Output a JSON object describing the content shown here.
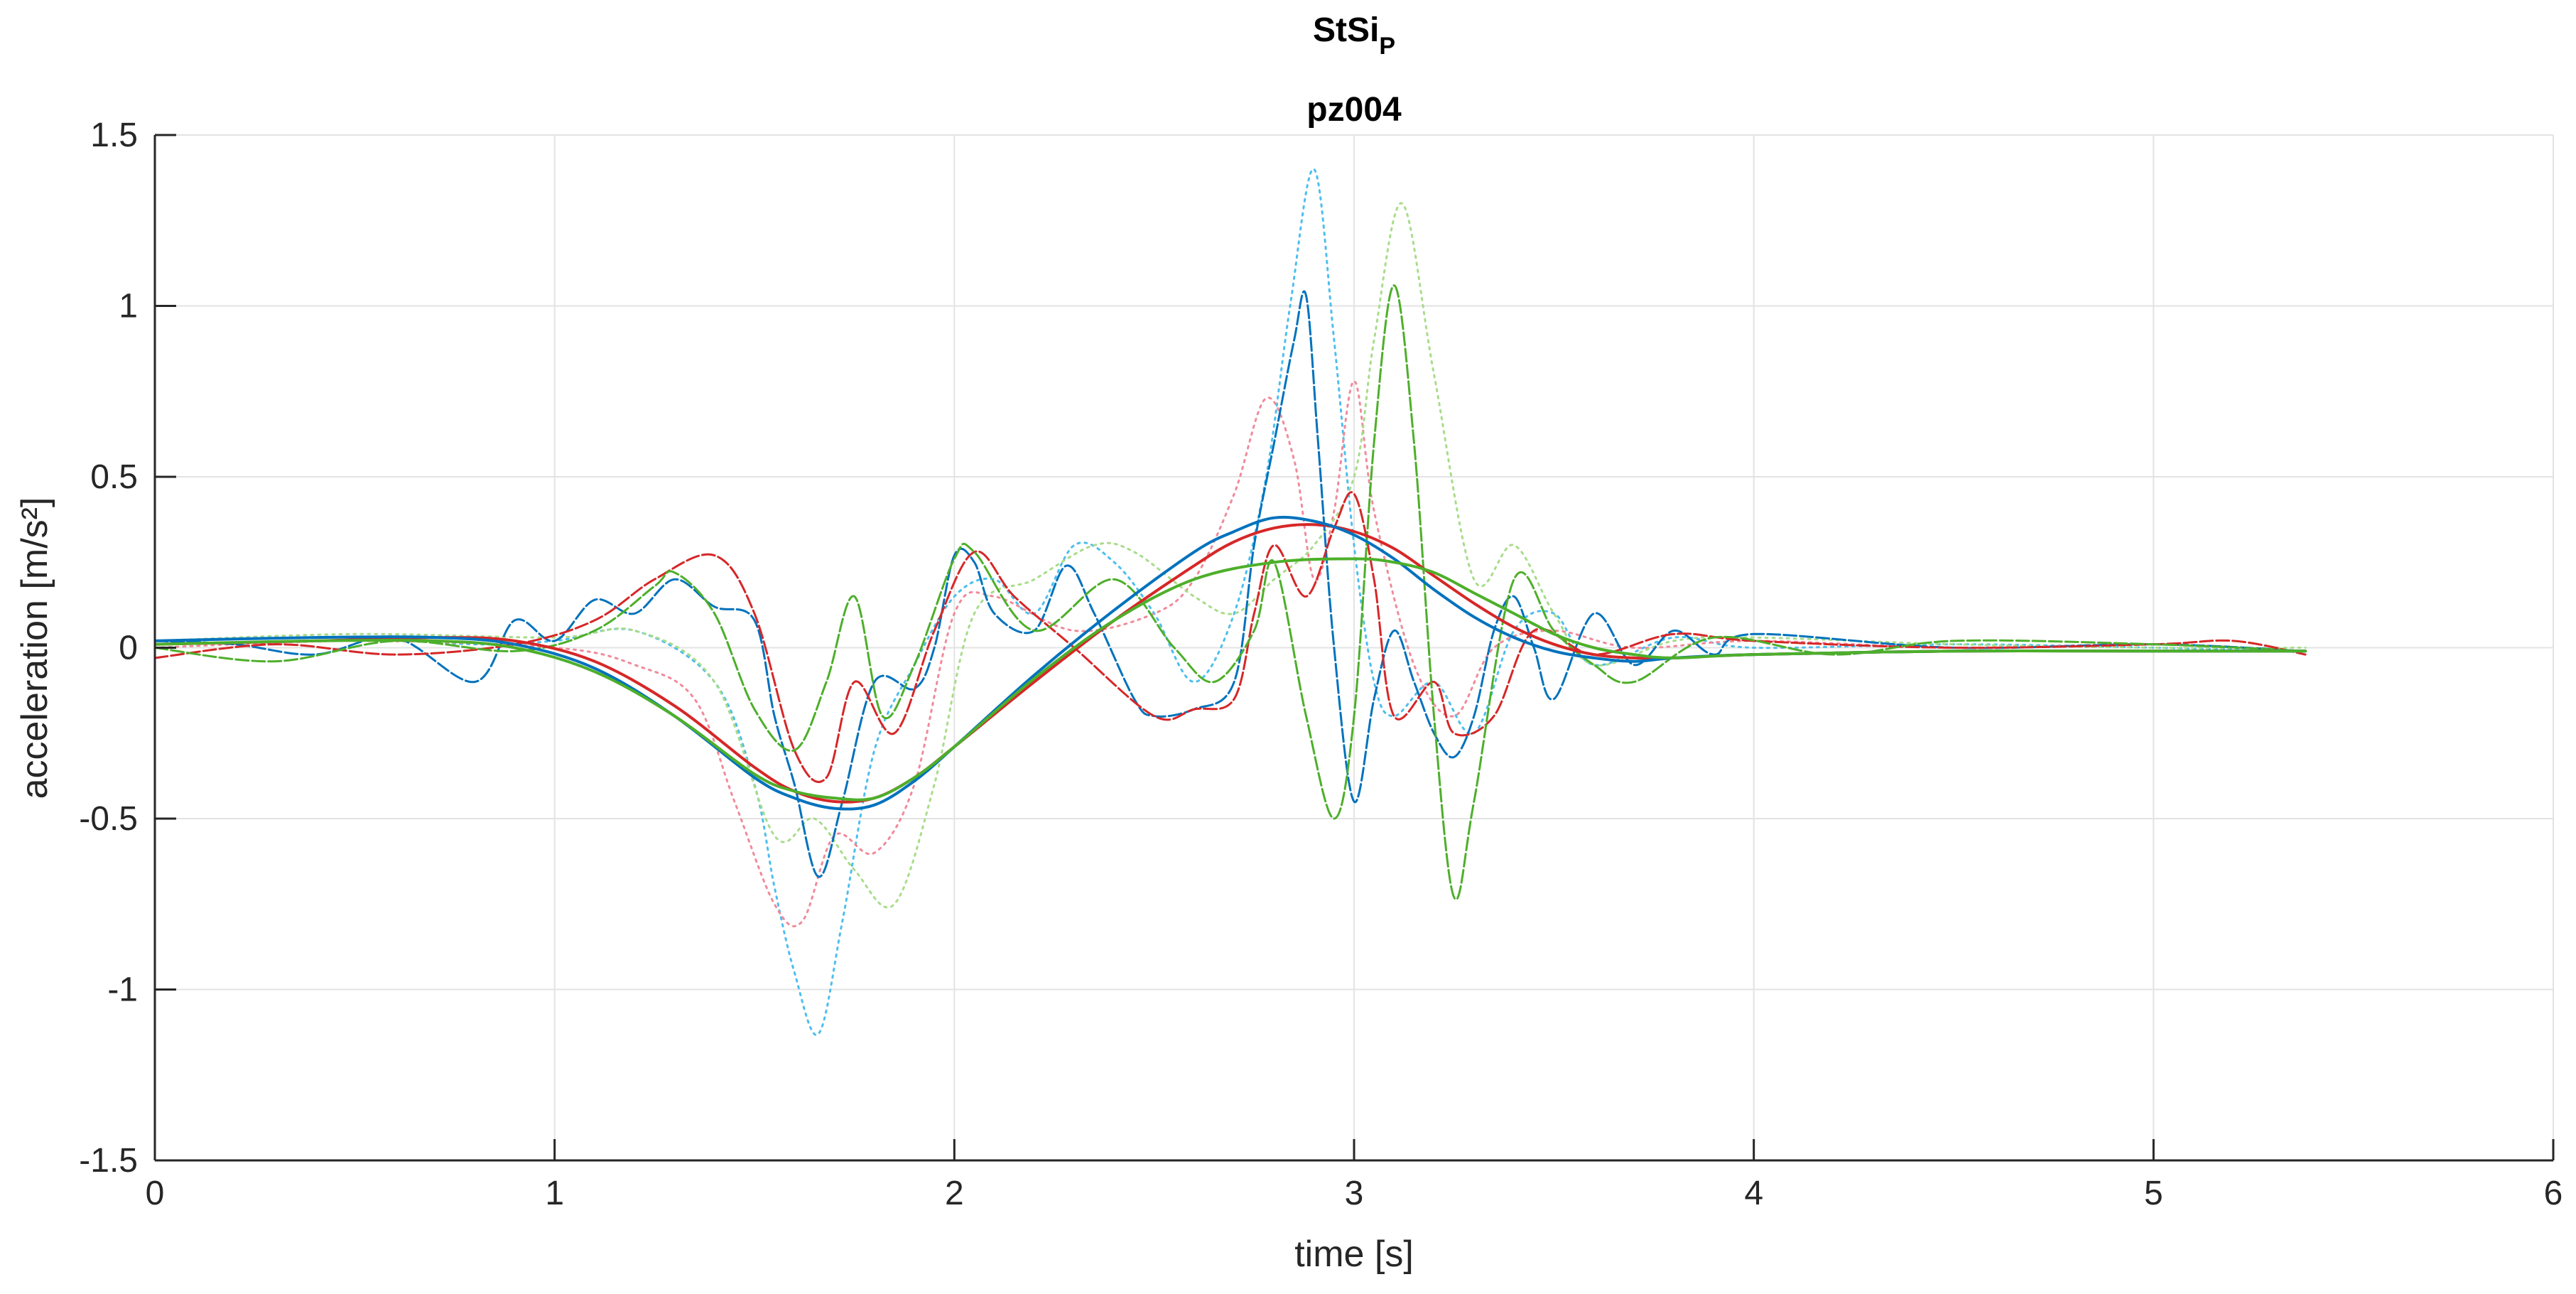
{
  "chart_data": {
    "type": "line",
    "title": "StSi",
    "title_subscript": "P",
    "subtitle": "pz004",
    "xlabel": "time [s]",
    "ylabel": "acceleration [m/s²]",
    "xlim": [
      0,
      6
    ],
    "ylim": [
      -1.5,
      1.5
    ],
    "xticks": [
      0,
      1,
      2,
      3,
      4,
      5,
      6
    ],
    "xtick_labels": [
      "0",
      "1",
      "2",
      "3",
      "4",
      "5",
      "6"
    ],
    "yticks": [
      -1.5,
      -1,
      -0.5,
      0,
      0.5,
      1,
      1.5
    ],
    "ytick_labels": [
      "-1.5",
      "-1",
      "-0.5",
      "0",
      "0.5",
      "1",
      "1.5"
    ],
    "grid": true,
    "colors": {
      "red": "#d62728",
      "blue": "#0072bd",
      "green": "#4daf2a",
      "lightblue": "#4dbeee"
    },
    "series": [
      {
        "color": "#d62728",
        "style": "solid",
        "width": 4,
        "x": [
          0,
          0.4,
          0.7,
          0.9,
          1.1,
          1.3,
          1.5,
          1.6,
          1.7,
          1.8,
          1.9,
          2.0,
          2.2,
          2.4,
          2.6,
          2.7,
          2.8,
          2.9,
          3.0,
          3.1,
          3.2,
          3.3,
          3.4,
          3.5,
          3.6,
          3.7,
          3.8,
          4.0,
          4.5,
          5.0,
          5.38
        ],
        "y": [
          0.01,
          0.02,
          0.03,
          0.02,
          -0.04,
          -0.17,
          -0.35,
          -0.42,
          -0.45,
          -0.44,
          -0.38,
          -0.29,
          -0.1,
          0.08,
          0.24,
          0.31,
          0.35,
          0.36,
          0.34,
          0.29,
          0.21,
          0.13,
          0.06,
          0.01,
          -0.02,
          -0.03,
          -0.03,
          -0.02,
          -0.01,
          -0.01,
          -0.01
        ]
      },
      {
        "color": "#0072bd",
        "style": "solid",
        "width": 4,
        "x": [
          0,
          0.4,
          0.7,
          0.9,
          1.1,
          1.3,
          1.5,
          1.6,
          1.7,
          1.8,
          1.9,
          2.0,
          2.2,
          2.4,
          2.6,
          2.7,
          2.8,
          2.9,
          3.0,
          3.1,
          3.2,
          3.3,
          3.4,
          3.5,
          3.6,
          3.7,
          3.8,
          4.0,
          4.5,
          5.0,
          5.38
        ],
        "y": [
          0.02,
          0.03,
          0.03,
          0.01,
          -0.06,
          -0.2,
          -0.38,
          -0.44,
          -0.47,
          -0.46,
          -0.39,
          -0.29,
          -0.08,
          0.11,
          0.28,
          0.34,
          0.38,
          0.37,
          0.33,
          0.26,
          0.17,
          0.09,
          0.03,
          -0.01,
          -0.03,
          -0.04,
          -0.03,
          -0.02,
          -0.01,
          -0.01,
          -0.01
        ]
      },
      {
        "color": "#4daf2a",
        "style": "solid",
        "width": 4,
        "x": [
          0,
          0.4,
          0.7,
          0.9,
          1.1,
          1.3,
          1.5,
          1.6,
          1.7,
          1.8,
          1.9,
          2.0,
          2.2,
          2.4,
          2.6,
          2.8,
          3.0,
          3.1,
          3.2,
          3.3,
          3.4,
          3.5,
          3.6,
          3.7,
          3.8,
          4.0,
          4.5,
          5.0,
          5.38
        ],
        "y": [
          0.01,
          0.02,
          0.02,
          0.0,
          -0.07,
          -0.2,
          -0.37,
          -0.42,
          -0.44,
          -0.44,
          -0.38,
          -0.29,
          -0.09,
          0.08,
          0.2,
          0.25,
          0.26,
          0.25,
          0.22,
          0.16,
          0.1,
          0.04,
          0.0,
          -0.02,
          -0.03,
          -0.02,
          -0.01,
          -0.01,
          -0.01
        ]
      },
      {
        "color": "#0072bd",
        "style": "dashed",
        "width": 3,
        "x": [
          0,
          0.2,
          0.4,
          0.6,
          0.8,
          0.9,
          1.0,
          1.1,
          1.2,
          1.3,
          1.4,
          1.5,
          1.55,
          1.6,
          1.66,
          1.72,
          1.8,
          1.9,
          1.95,
          2.0,
          2.05,
          2.1,
          2.2,
          2.28,
          2.35,
          2.45,
          2.5,
          2.6,
          2.7,
          2.75,
          2.8,
          2.85,
          2.88,
          2.91,
          2.95,
          3.0,
          3.05,
          3.1,
          3.15,
          3.2,
          3.25,
          3.3,
          3.35,
          3.4,
          3.45,
          3.5,
          3.6,
          3.7,
          3.8,
          3.9,
          4.0,
          4.5,
          5.0,
          5.38
        ],
        "y": [
          0.02,
          0.01,
          -0.02,
          0.03,
          -0.1,
          0.08,
          0.02,
          0.14,
          0.1,
          0.2,
          0.12,
          0.08,
          -0.2,
          -0.4,
          -0.67,
          -0.45,
          -0.1,
          -0.12,
          0.0,
          0.27,
          0.25,
          0.1,
          0.05,
          0.24,
          0.1,
          -0.15,
          -0.2,
          -0.18,
          -0.1,
          0.3,
          0.6,
          0.9,
          1.03,
          0.6,
          0.0,
          -0.45,
          -0.15,
          0.05,
          -0.1,
          -0.25,
          -0.32,
          -0.2,
          0.05,
          0.15,
          0.0,
          -0.15,
          0.1,
          -0.05,
          0.05,
          -0.02,
          0.04,
          0.0,
          0.01,
          -0.01
        ]
      },
      {
        "color": "#d62728",
        "style": "dashed",
        "width": 3,
        "x": [
          0,
          0.3,
          0.6,
          0.9,
          1.1,
          1.25,
          1.4,
          1.5,
          1.6,
          1.68,
          1.75,
          1.85,
          1.95,
          2.05,
          2.15,
          2.3,
          2.5,
          2.6,
          2.7,
          2.75,
          2.8,
          2.88,
          2.95,
          3.0,
          3.05,
          3.1,
          3.2,
          3.25,
          3.35,
          3.45,
          3.6,
          3.8,
          4.0,
          4.5,
          5.0,
          5.2,
          5.38
        ],
        "y": [
          -0.03,
          0.01,
          -0.02,
          0.01,
          0.08,
          0.2,
          0.27,
          0.1,
          -0.3,
          -0.38,
          -0.1,
          -0.25,
          0.05,
          0.28,
          0.15,
          0.0,
          -0.2,
          -0.18,
          -0.15,
          0.1,
          0.3,
          0.15,
          0.35,
          0.45,
          0.2,
          -0.2,
          -0.1,
          -0.25,
          -0.2,
          0.05,
          -0.02,
          0.04,
          0.02,
          0.0,
          0.01,
          0.02,
          -0.02
        ]
      },
      {
        "color": "#4daf2a",
        "style": "dashed",
        "width": 3,
        "x": [
          0,
          0.3,
          0.6,
          0.9,
          1.1,
          1.25,
          1.3,
          1.4,
          1.5,
          1.6,
          1.68,
          1.75,
          1.82,
          1.9,
          2.0,
          2.05,
          2.2,
          2.4,
          2.55,
          2.65,
          2.75,
          2.8,
          2.88,
          2.95,
          3.0,
          3.05,
          3.1,
          3.15,
          3.2,
          3.25,
          3.3,
          3.4,
          3.5,
          3.6,
          3.7,
          3.9,
          4.2,
          4.5,
          5.0,
          5.38
        ],
        "y": [
          0.0,
          -0.04,
          0.02,
          -0.01,
          0.05,
          0.18,
          0.22,
          0.1,
          -0.18,
          -0.3,
          -0.1,
          0.15,
          -0.2,
          -0.05,
          0.26,
          0.28,
          0.05,
          0.2,
          0.0,
          -0.1,
          0.05,
          0.25,
          -0.2,
          -0.5,
          -0.2,
          0.6,
          1.06,
          0.6,
          -0.2,
          -0.73,
          -0.45,
          0.2,
          0.05,
          -0.05,
          -0.1,
          0.03,
          -0.02,
          0.02,
          0.01,
          -0.01
        ]
      },
      {
        "color": "#4dbeee",
        "style": "dotted",
        "width": 3,
        "x": [
          0,
          0.5,
          0.8,
          1.0,
          1.2,
          1.4,
          1.5,
          1.55,
          1.6,
          1.66,
          1.72,
          1.8,
          1.9,
          2.0,
          2.1,
          2.2,
          2.3,
          2.4,
          2.5,
          2.6,
          2.7,
          2.78,
          2.84,
          2.9,
          2.95,
          3.0,
          3.05,
          3.1,
          3.2,
          3.3,
          3.4,
          3.5,
          3.6,
          3.8,
          4.0,
          4.5,
          5.0,
          5.38
        ],
        "y": [
          0.02,
          0.03,
          0.01,
          0.02,
          0.05,
          -0.1,
          -0.4,
          -0.7,
          -0.95,
          -1.13,
          -0.8,
          -0.3,
          -0.05,
          0.15,
          0.2,
          0.1,
          0.3,
          0.25,
          0.1,
          -0.1,
          0.1,
          0.5,
          1.0,
          1.4,
          0.9,
          0.3,
          -0.1,
          -0.2,
          -0.1,
          -0.25,
          0.05,
          0.1,
          -0.05,
          0.03,
          0.0,
          0.01,
          0.0,
          -0.01
        ]
      },
      {
        "color": "#f08a9a",
        "style": "dotted",
        "width": 3,
        "x": [
          0,
          0.5,
          1.0,
          1.2,
          1.35,
          1.45,
          1.55,
          1.62,
          1.7,
          1.8,
          1.9,
          2.0,
          2.1,
          2.3,
          2.5,
          2.6,
          2.7,
          2.78,
          2.85,
          2.9,
          2.95,
          3.0,
          3.05,
          3.15,
          3.25,
          3.35,
          3.5,
          3.7,
          4.0,
          4.5,
          5.0,
          5.38
        ],
        "y": [
          0.0,
          0.02,
          0.0,
          -0.05,
          -0.15,
          -0.45,
          -0.75,
          -0.8,
          -0.55,
          -0.6,
          -0.4,
          0.1,
          0.15,
          0.05,
          0.1,
          0.2,
          0.45,
          0.73,
          0.55,
          0.2,
          0.4,
          0.78,
          0.4,
          -0.05,
          -0.2,
          0.0,
          0.05,
          0.0,
          0.02,
          0.0,
          0.01,
          -0.01
        ]
      },
      {
        "color": "#a8dc8a",
        "style": "dotted",
        "width": 3,
        "x": [
          0,
          0.5,
          1.0,
          1.2,
          1.4,
          1.55,
          1.65,
          1.75,
          1.85,
          1.95,
          2.05,
          2.2,
          2.35,
          2.45,
          2.6,
          2.7,
          2.8,
          2.9,
          3.0,
          3.05,
          3.12,
          3.2,
          3.3,
          3.4,
          3.5,
          3.6,
          3.8,
          4.0,
          4.5,
          5.0,
          5.38
        ],
        "y": [
          0.02,
          0.04,
          0.03,
          0.05,
          -0.1,
          -0.55,
          -0.5,
          -0.65,
          -0.75,
          -0.4,
          0.1,
          0.2,
          0.3,
          0.28,
          0.15,
          0.1,
          0.2,
          0.3,
          0.5,
          0.9,
          1.3,
          0.8,
          0.2,
          0.3,
          0.1,
          -0.05,
          0.02,
          0.03,
          0.01,
          0.0,
          0.0
        ]
      }
    ]
  }
}
